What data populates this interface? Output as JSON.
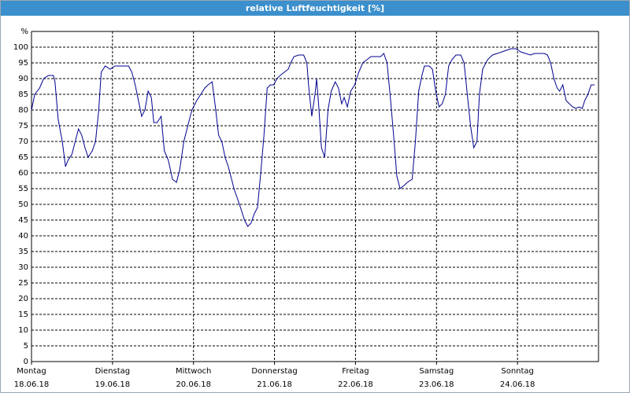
{
  "chart_data": {
    "type": "line",
    "title": "relative Luftfeuchtigkeit [%]",
    "x": [
      0,
      0.04,
      0.1,
      0.15,
      0.21,
      0.27,
      0.29,
      0.33,
      0.38,
      0.42,
      0.45,
      0.5,
      0.54,
      0.58,
      0.62,
      0.66,
      0.7,
      0.75,
      0.79,
      0.83,
      0.86,
      0.91,
      0.97,
      1.03,
      1.09,
      1.15,
      1.2,
      1.24,
      1.28,
      1.32,
      1.36,
      1.4,
      1.44,
      1.48,
      1.51,
      1.55,
      1.6,
      1.64,
      1.69,
      1.74,
      1.79,
      1.83,
      1.88,
      1.93,
      1.98,
      2.04,
      2.09,
      2.14,
      2.18,
      2.23,
      2.27,
      2.31,
      2.35,
      2.39,
      2.43,
      2.47,
      2.5,
      2.54,
      2.58,
      2.63,
      2.67,
      2.71,
      2.75,
      2.79,
      2.83,
      2.87,
      2.91,
      2.95,
      2.99,
      3.03,
      3.07,
      3.12,
      3.17,
      3.2,
      3.24,
      3.3,
      3.36,
      3.4,
      3.42,
      3.46,
      3.5,
      3.52,
      3.55,
      3.58,
      3.62,
      3.66,
      3.7,
      3.75,
      3.79,
      3.83,
      3.86,
      3.9,
      3.94,
      3.99,
      4.04,
      4.09,
      4.14,
      4.19,
      4.25,
      4.31,
      4.35,
      4.39,
      4.43,
      4.47,
      4.51,
      4.55,
      4.6,
      4.64,
      4.7,
      4.74,
      4.78,
      4.82,
      4.85,
      4.91,
      4.95,
      4.99,
      5.03,
      5.07,
      5.11,
      5.15,
      5.19,
      5.24,
      5.3,
      5.34,
      5.38,
      5.42,
      5.46,
      5.5,
      5.53,
      5.57,
      5.63,
      5.69,
      5.75,
      5.81,
      5.86,
      5.92,
      5.98,
      6.04,
      6.1,
      6.16,
      6.21,
      6.27,
      6.33,
      6.37,
      6.41,
      6.45,
      6.49,
      6.52,
      6.56,
      6.6,
      6.64,
      6.68,
      6.72,
      6.76,
      6.8,
      6.83,
      6.87,
      6.91,
      6.95
    ],
    "series": [
      {
        "color": "#000090",
        "values": [
          80,
          85,
          87,
          90,
          91,
          91,
          89,
          77,
          70,
          62,
          64,
          66,
          70,
          74,
          72,
          68,
          65,
          67,
          70,
          80,
          92,
          94,
          93,
          94,
          94,
          94,
          94,
          92,
          88,
          83,
          78,
          80,
          86,
          84,
          76,
          76,
          78,
          67,
          64,
          58,
          57,
          61,
          70,
          75,
          80,
          83,
          85,
          87,
          88,
          89,
          81,
          72,
          70,
          65,
          62,
          58,
          55,
          52,
          49,
          45,
          43,
          44,
          47,
          49,
          60,
          72,
          87,
          88,
          88,
          90,
          91,
          92,
          93,
          95,
          97,
          97.5,
          97.5,
          95,
          88,
          78,
          85,
          90,
          80,
          68,
          65,
          80,
          86,
          89,
          87,
          82,
          84,
          81,
          86,
          88,
          92,
          95,
          96,
          97,
          97,
          97,
          98,
          95,
          84,
          72,
          59,
          55,
          56,
          57,
          58,
          70,
          86,
          91,
          94,
          94,
          93,
          86,
          81,
          82,
          85,
          94,
          96,
          97.5,
          97.5,
          95,
          85,
          75,
          68,
          70,
          85,
          93,
          96,
          97.5,
          98,
          98.5,
          99,
          99.5,
          99.5,
          98.5,
          98,
          97.5,
          98,
          98,
          98,
          97.5,
          95,
          90,
          87,
          86,
          88,
          83,
          82,
          81,
          80.5,
          81,
          80.5,
          83,
          85,
          88,
          88
        ]
      }
    ],
    "xlim": [
      0,
      7
    ],
    "xticks": [
      {
        "value": 0,
        "label": "Montag",
        "date": "18.06.18"
      },
      {
        "value": 1,
        "label": "Dienstag",
        "date": "19.06.18"
      },
      {
        "value": 2,
        "label": "Mittwoch",
        "date": "20.06.18"
      },
      {
        "value": 3,
        "label": "Donnerstag",
        "date": "21.06.18"
      },
      {
        "value": 4,
        "label": "Freitag",
        "date": "22.06.18"
      },
      {
        "value": 5,
        "label": "Samstag",
        "date": "23.06.18"
      },
      {
        "value": 6,
        "label": "Sonntag",
        "date": "24.06.18"
      }
    ],
    "ylim": [
      0,
      105
    ],
    "yticks": [
      0,
      5,
      10,
      15,
      20,
      25,
      30,
      35,
      40,
      45,
      50,
      55,
      60,
      65,
      70,
      75,
      80,
      85,
      90,
      95,
      100,
      {
        "value": 105,
        "label": "%"
      }
    ],
    "grid": true
  }
}
